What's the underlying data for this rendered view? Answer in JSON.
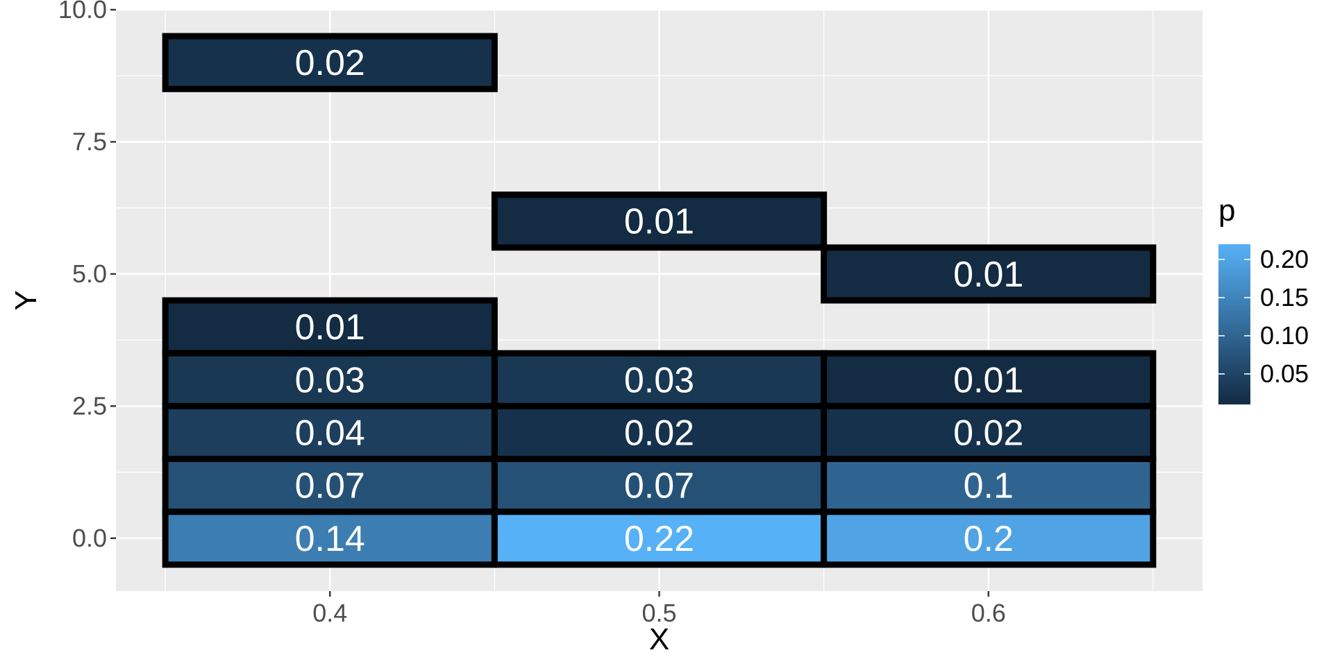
{
  "chart_data": {
    "type": "heatmap",
    "title": "",
    "xlabel": "X",
    "ylabel": "Y",
    "x_ticks": [
      0.4,
      0.5,
      0.6
    ],
    "x_tick_labels": [
      "0.4",
      "0.5",
      "0.6"
    ],
    "y_ticks": [
      0,
      2.5,
      5,
      7.5,
      10
    ],
    "y_tick_labels": [
      "0.0",
      "2.5",
      "5.0",
      "7.5",
      "10.0"
    ],
    "xlim": [
      0.335,
      0.665
    ],
    "ylim": [
      -1,
      10
    ],
    "grid": true,
    "cells": [
      {
        "x": 0.4,
        "y": 9,
        "p": 0.02,
        "label": "0.02"
      },
      {
        "x": 0.4,
        "y": 4,
        "p": 0.01,
        "label": "0.01"
      },
      {
        "x": 0.4,
        "y": 3,
        "p": 0.03,
        "label": "0.03"
      },
      {
        "x": 0.4,
        "y": 2,
        "p": 0.04,
        "label": "0.04"
      },
      {
        "x": 0.4,
        "y": 1,
        "p": 0.07,
        "label": "0.07"
      },
      {
        "x": 0.4,
        "y": 0,
        "p": 0.14,
        "label": "0.14"
      },
      {
        "x": 0.5,
        "y": 6,
        "p": 0.01,
        "label": "0.01"
      },
      {
        "x": 0.5,
        "y": 3,
        "p": 0.03,
        "label": "0.03"
      },
      {
        "x": 0.5,
        "y": 2,
        "p": 0.02,
        "label": "0.02"
      },
      {
        "x": 0.5,
        "y": 1,
        "p": 0.07,
        "label": "0.07"
      },
      {
        "x": 0.5,
        "y": 0,
        "p": 0.22,
        "label": "0.22"
      },
      {
        "x": 0.6,
        "y": 5,
        "p": 0.01,
        "label": "0.01"
      },
      {
        "x": 0.6,
        "y": 3,
        "p": 0.01,
        "label": "0.01"
      },
      {
        "x": 0.6,
        "y": 2,
        "p": 0.02,
        "label": "0.02"
      },
      {
        "x": 0.6,
        "y": 1,
        "p": 0.1,
        "label": "0.1"
      },
      {
        "x": 0.6,
        "y": 0,
        "p": 0.2,
        "label": "0.2"
      }
    ],
    "legend": {
      "title": "p",
      "placement": "right",
      "range": [
        0.01,
        0.22
      ],
      "ticks": [
        0.05,
        0.1,
        0.15,
        0.2
      ],
      "tick_labels": [
        "0.05",
        "0.10",
        "0.15",
        "0.20"
      ],
      "color_low": "#132B43",
      "color_high": "#56B1F7"
    },
    "colors": {
      "panel_background": "#EBEBEB",
      "grid": "#FFFFFF",
      "cell_border": "#000000",
      "cell_text": "#FFFFFF"
    }
  }
}
